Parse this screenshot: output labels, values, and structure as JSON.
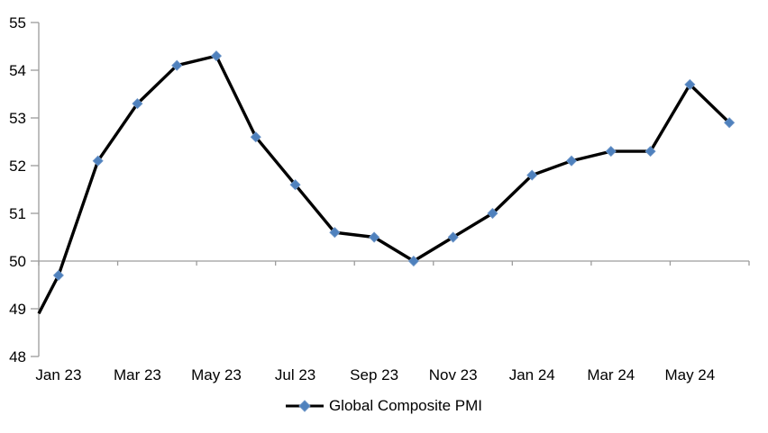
{
  "chart_data": {
    "type": "line",
    "title": "",
    "categories": [
      "Jan 23",
      "Feb 23",
      "Mar 23",
      "Apr 23",
      "May 23",
      "Jun 23",
      "Jul 23",
      "Aug 23",
      "Sep 23",
      "Oct 23",
      "Nov 23",
      "Dec 23",
      "Jan 24",
      "Feb 24",
      "Mar 24",
      "Apr 24",
      "May 24",
      "Jun 24"
    ],
    "series": [
      {
        "name": "Global Composite PMI",
        "values": [
          49.7,
          52.1,
          53.3,
          54.1,
          54.3,
          52.6,
          51.6,
          50.6,
          50.5,
          50.0,
          50.5,
          51.0,
          51.8,
          52.1,
          52.3,
          52.3,
          53.7,
          52.9
        ]
      }
    ],
    "line_entry_at_left_axis": 48.9,
    "x_tick_labels": [
      "Jan 23",
      "Mar 23",
      "May 23",
      "Jul 23",
      "Sep 23",
      "Nov 23",
      "Jan 24",
      "Mar 24",
      "May 24"
    ],
    "y_ticks": [
      48,
      49,
      50,
      51,
      52,
      53,
      54,
      55
    ],
    "ylim": [
      48,
      55
    ],
    "x_axis_cross": 50,
    "grid": "off",
    "legend_position": "bottom-center",
    "marker_shape": "diamond",
    "colors": {
      "line": "#000000",
      "marker": "#4F81BD",
      "marker_edge": "#6E96C8",
      "axis": "#9C9C9C",
      "text": "#000000",
      "background": "#FFFFFF"
    }
  }
}
